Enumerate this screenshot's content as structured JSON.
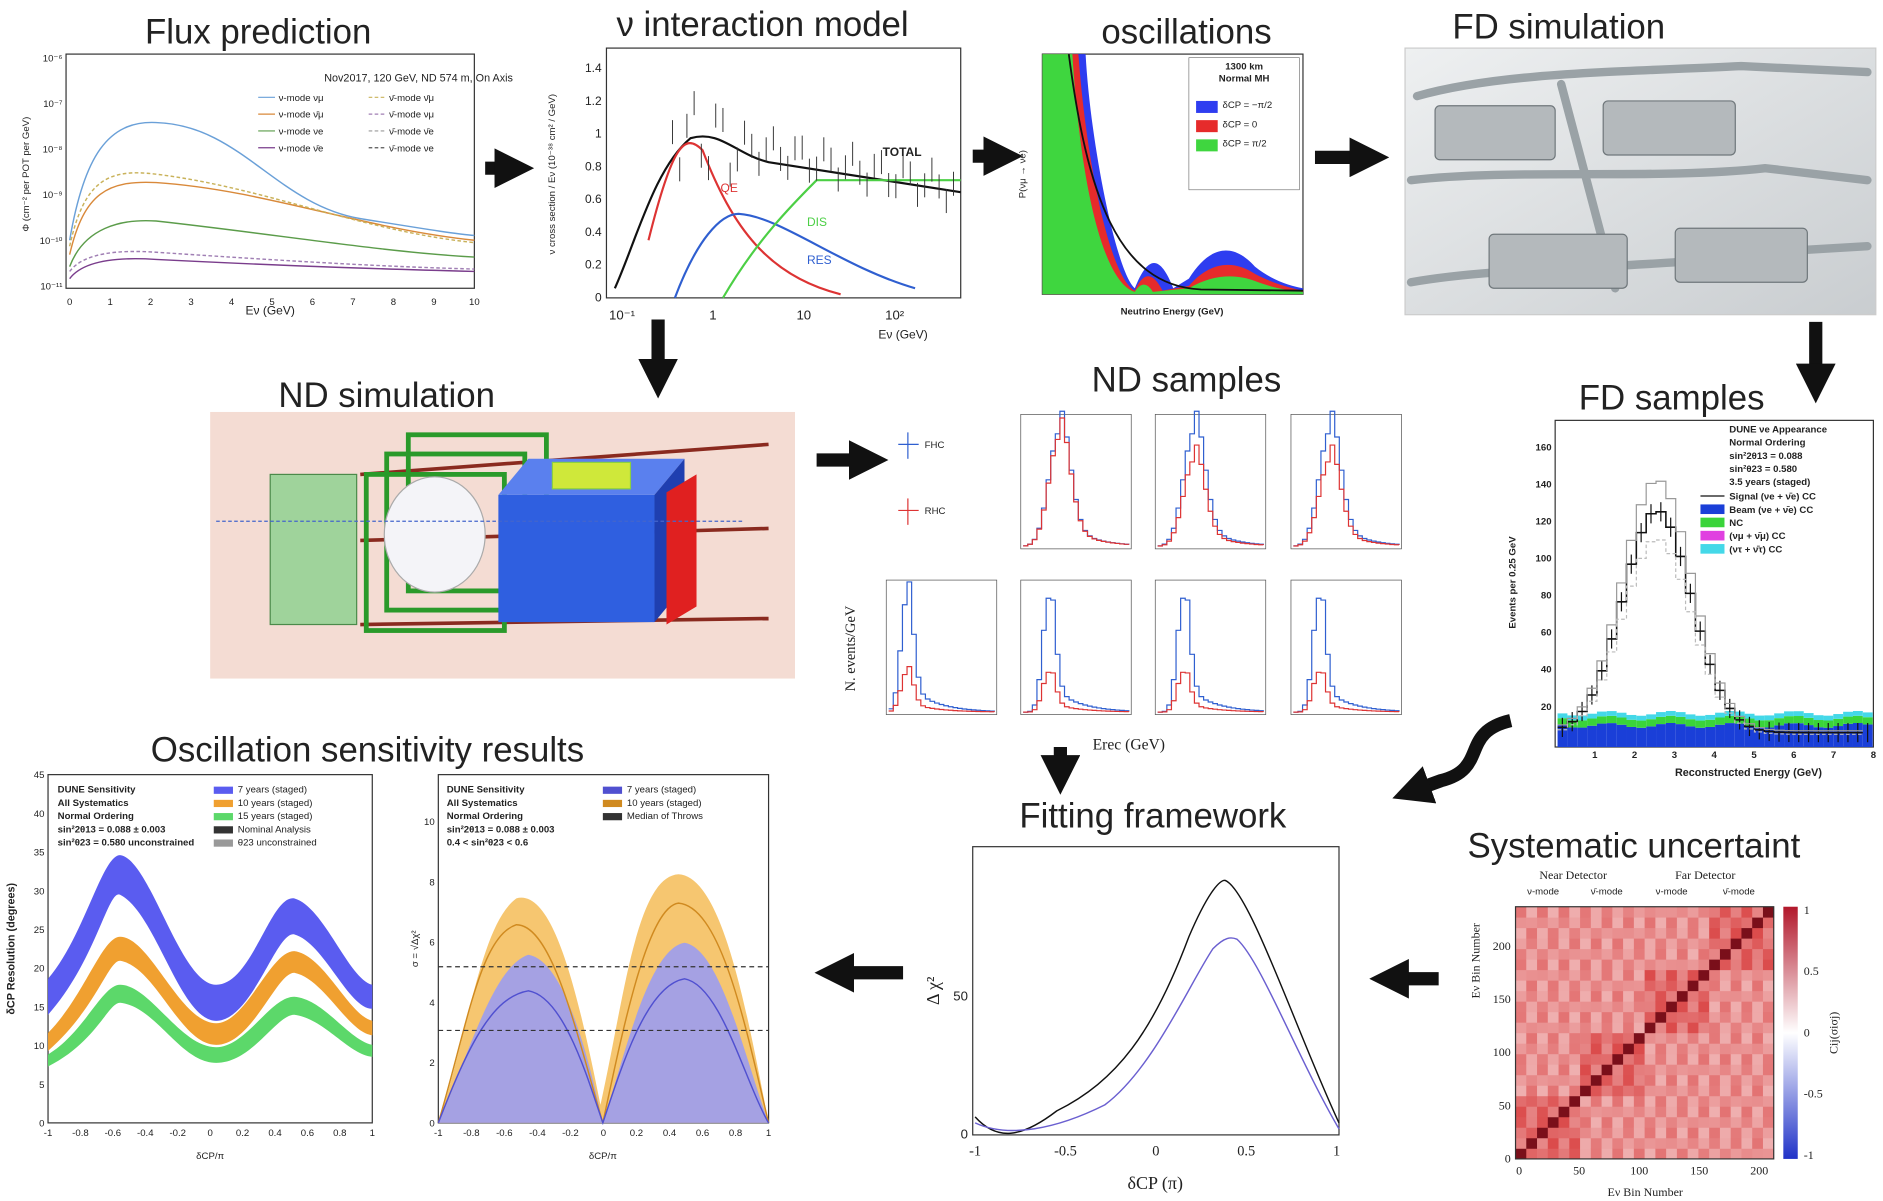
{
  "flux": {
    "title": "Flux prediction",
    "header": "Nov2017, 120 GeV, ND 574 m, On Axis",
    "legend": [
      "ν-mode νμ",
      "ν̄-mode ν̄μ",
      "ν-mode ν̄μ",
      "ν̄-mode νμ",
      "ν-mode νe",
      "ν̄-mode ν̄e",
      "ν-mode ν̄e",
      "ν̄-mode νe"
    ],
    "y_label": "Φ (cm⁻² per POT per GeV)",
    "x_label": "Eν (GeV)",
    "x_ticks": [
      0,
      1,
      2,
      3,
      4,
      5,
      6,
      7,
      8,
      9,
      10
    ],
    "y_ticks": [
      "10⁻⁶",
      "10⁻⁷",
      "10⁻⁸",
      "10⁻⁹",
      "10⁻¹⁰",
      "10⁻¹¹"
    ]
  },
  "xsec": {
    "title": "ν interaction model",
    "curves": [
      "TOTAL",
      "QE",
      "DIS",
      "RES"
    ],
    "y_label": "ν cross section / Eν (10⁻³⁸ cm² / GeV)",
    "x_label": "Eν (GeV)",
    "x_ticks": [
      "10⁻¹",
      "1",
      "10",
      "10²"
    ],
    "y_ticks": [
      1.4,
      1.2,
      1,
      0.8,
      0.6,
      0.4,
      0.2,
      0
    ]
  },
  "osc": {
    "title": "oscillations",
    "header": [
      "1300 km",
      "Normal MH"
    ],
    "legend": [
      "δCP = −π/2",
      "δCP = 0",
      "δCP = π/2"
    ],
    "y_label": "P(νμ → νe)",
    "x_label": "Neutrino Energy (GeV)"
  },
  "fd_sim": {
    "title": "FD simulation"
  },
  "nd_sim": {
    "title": "ND simulation"
  },
  "nd_samples": {
    "title": "ND samples",
    "legend": [
      "FHC",
      "RHC"
    ],
    "y_label": "N. events/GeV",
    "x_label": "Erec (GeV)"
  },
  "fd_samples": {
    "title": "FD samples",
    "header": [
      "DUNE νe Appearance",
      "Normal Ordering",
      "sin²2θ13 = 0.088",
      "sin²θ23 = 0.580",
      "3.5 years (staged)"
    ],
    "legend": [
      "Signal (νe + ν̄e) CC",
      "Beam (νe + ν̄e) CC",
      "NC",
      "(νμ + ν̄μ) CC",
      "(ντ + ν̄τ) CC"
    ],
    "y_label": "Events per 0.25 GeV",
    "x_label": "Reconstructed Energy (GeV)",
    "x_ticks": [
      1,
      2,
      3,
      4,
      5,
      6,
      7,
      8
    ],
    "y_ticks": [
      160,
      140,
      120,
      100,
      80,
      60,
      40,
      20
    ]
  },
  "sensitivity": {
    "title": "Oscillation sensitivity results",
    "left": {
      "header": [
        "DUNE Sensitivity",
        "All Systematics",
        "Normal Ordering",
        "sin²2θ13 = 0.088 ± 0.003",
        "sin²θ23 = 0.580 unconstrained"
      ],
      "legend": [
        "7 years (staged)",
        "10 years (staged)",
        "15 years (staged)",
        "Nominal Analysis",
        "θ23 unconstrained"
      ],
      "y_label": "δCP Resolution (degrees)",
      "x_label": "δCP/π",
      "y_ticks": [
        45,
        40,
        35,
        30,
        25,
        20,
        15,
        10,
        5,
        0
      ],
      "x_ticks": [
        -1,
        -0.8,
        -0.6,
        -0.4,
        -0.2,
        0,
        0.2,
        0.4,
        0.6,
        0.8,
        1
      ]
    },
    "right": {
      "header": [
        "DUNE Sensitivity",
        "All Systematics",
        "Normal Ordering",
        "sin²2θ13 = 0.088 ± 0.003",
        "0.4 < sin²θ23 < 0.6"
      ],
      "legend": [
        "7 years (staged)",
        "10 years (staged)",
        "Median of Throws"
      ],
      "y_label": "σ = √Δχ²",
      "x_label": "δCP/π",
      "y_ticks": [
        10,
        8,
        6,
        4,
        2,
        0
      ],
      "x_ticks": [
        -1,
        -0.8,
        -0.6,
        -0.4,
        -0.2,
        0,
        0.2,
        0.4,
        0.6,
        0.8,
        1
      ]
    }
  },
  "fit": {
    "title": "Fitting framework",
    "y_label": "Δ χ²",
    "x_label": "δCP (π)",
    "y_ticks": [
      50,
      0
    ],
    "x_ticks": [
      -1,
      -0.5,
      0,
      0.5,
      1
    ]
  },
  "syst": {
    "title": "Systematic uncertaint",
    "groups": [
      "Near Detector",
      "Far Detector"
    ],
    "modes": [
      "ν-mode",
      "ν̄-mode",
      "ν-mode",
      "ν̄-mode"
    ],
    "y_label": "Eν Bin Number",
    "x_label": "Eν Bin Number",
    "cbar_label": "Cij(σiσj)",
    "x_ticks": [
      0,
      50,
      100,
      150,
      200
    ],
    "y_ticks": [
      200,
      150,
      100,
      50,
      0
    ],
    "cbar_ticks": [
      1,
      0.5,
      0,
      -0.5,
      -1
    ]
  }
}
